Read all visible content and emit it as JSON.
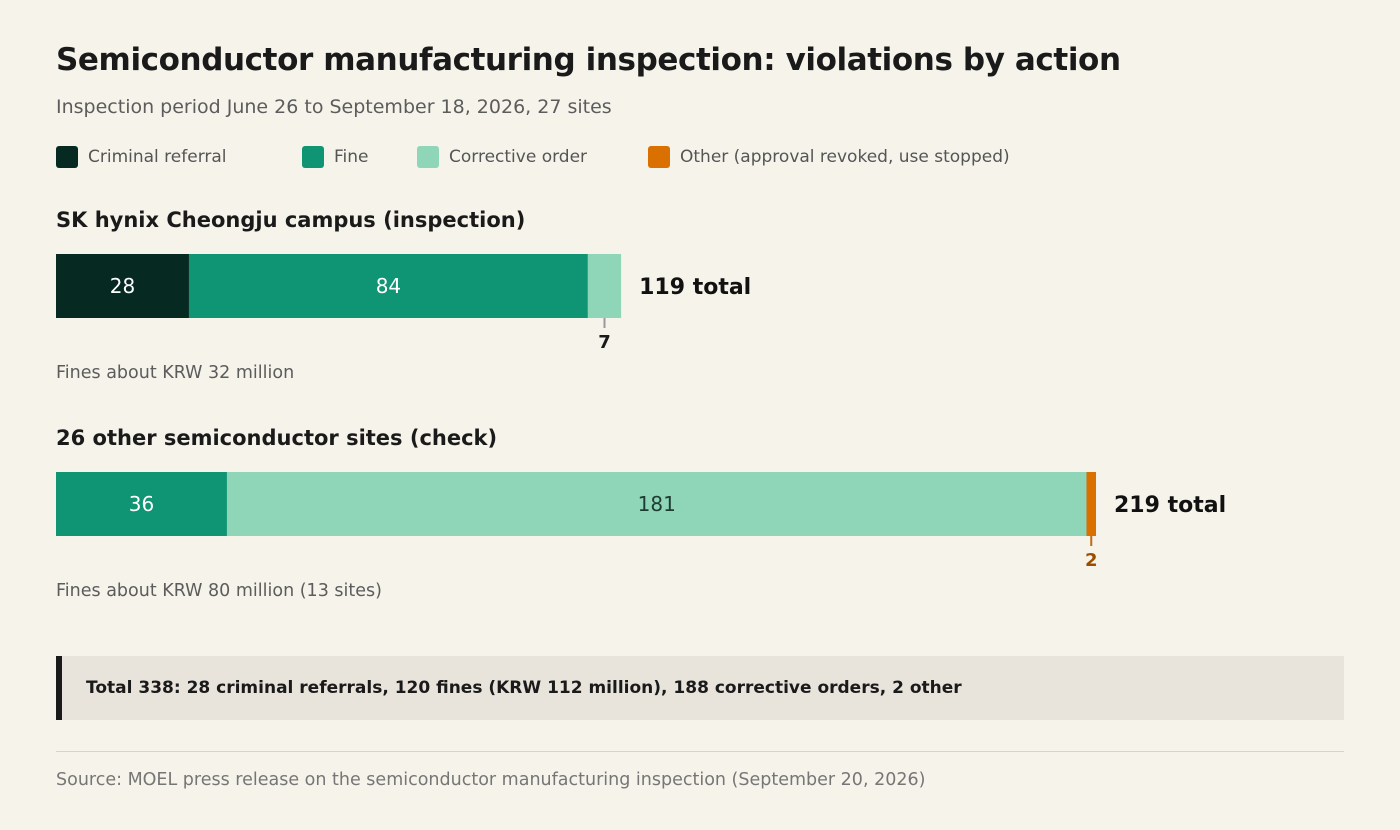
{
  "title": "Semiconductor manufacturing inspection: violations by action",
  "subtitle": "Inspection period June 26 to September 18, 2026, 27 sites",
  "legend": [
    {
      "label": "Criminal referral",
      "color": "#062a22"
    },
    {
      "label": "Fine",
      "color": "#0f9474"
    },
    {
      "label": "Corrective order",
      "color": "#8fd5b8"
    },
    {
      "label": "Other (approval revoked, use stopped)",
      "color": "#d97000"
    }
  ],
  "groups": [
    {
      "title": "SK hynix Cheongju campus (inspection)",
      "total_label": "119 total",
      "note": "Fines about KRW 32 million"
    },
    {
      "title": "26 other semiconductor sites (check)",
      "total_label": "219 total",
      "note": "Fines about KRW 80 million (13 sites)"
    }
  ],
  "summary": "Total 338: 28 criminal referrals, 120 fines (KRW 112 million), 188 corrective orders, 2 other",
  "source": "Source: MOEL press release on the semiconductor manufacturing inspection (September 20, 2026)",
  "chart_data": {
    "type": "bar",
    "orientation": "horizontal",
    "stacked": true,
    "categories": [
      "SK hynix Cheongju campus (inspection)",
      "26 other semiconductor sites (check)"
    ],
    "series": [
      {
        "name": "Criminal referral",
        "values": [
          28,
          0
        ],
        "color": "#062a22"
      },
      {
        "name": "Fine",
        "values": [
          84,
          36
        ],
        "color": "#0f9474"
      },
      {
        "name": "Corrective order",
        "values": [
          7,
          181
        ],
        "color": "#8fd5b8"
      },
      {
        "name": "Other (approval revoked, use stopped)",
        "values": [
          0,
          2
        ],
        "color": "#d97000"
      }
    ],
    "totals": [
      119,
      219
    ],
    "xlim": [
      0,
      219
    ],
    "grid": false,
    "legend_position": "top"
  }
}
